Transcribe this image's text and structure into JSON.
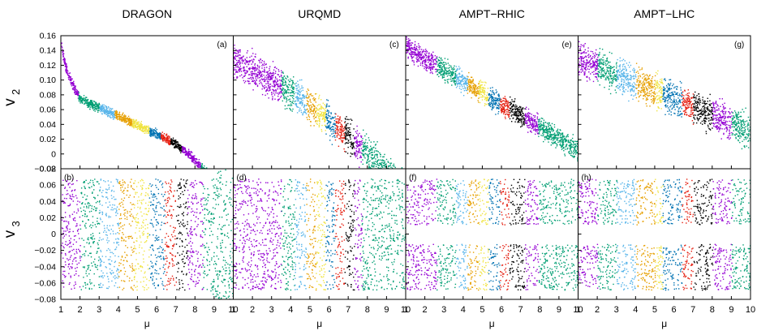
{
  "figure": {
    "column_titles": [
      "DRAGON",
      "URQMD",
      "AMPT−RHIC",
      "AMPT−LHC"
    ],
    "row_labels": [
      {
        "base": "v",
        "sub": "2"
      },
      {
        "base": "v",
        "sub": "3"
      }
    ],
    "x_axis_label": "μ",
    "x_tick_labels": [
      "1",
      "2",
      "3",
      "4",
      "5",
      "6",
      "7",
      "8",
      "9",
      "10"
    ],
    "top_tick_labels": [
      "0.16",
      "0.14",
      "0.12",
      "0.10",
      "0.08",
      "0.06",
      "0.04",
      "0.02",
      "0",
      "−0.02"
    ],
    "bottom_tick_labels": [
      "0.08",
      "0.06",
      "0.04",
      "0.02",
      "0",
      "−0.02",
      "−0.04",
      "−0.06",
      "−0.08"
    ]
  },
  "chart_data": {
    "type": "scatter",
    "xlim": [
      1,
      10
    ],
    "ylim_v2": [
      -0.02,
      0.16
    ],
    "ylim_v3": [
      -0.08,
      0.08
    ],
    "band_palette": [
      "#9400d3",
      "#009e73",
      "#56b4e9",
      "#e69f00",
      "#f0e442",
      "#0072b2",
      "#e51e10",
      "#000000"
    ],
    "panels": [
      {
        "label": "(a)",
        "column": "DRAGON",
        "observable": "v2",
        "bands": [
          [
            1.0,
            1.9
          ],
          [
            1.9,
            3.0
          ],
          [
            3.0,
            3.8
          ],
          [
            3.8,
            4.7
          ],
          [
            4.7,
            5.6
          ],
          [
            5.6,
            6.2
          ],
          [
            6.2,
            6.7
          ],
          [
            6.7,
            7.3
          ],
          [
            7.3,
            8.3
          ],
          [
            8.3,
            10.0
          ]
        ]
      },
      {
        "label": "(b)",
        "column": "DRAGON",
        "observable": "v3",
        "bands": [
          [
            1.0,
            2.0
          ],
          [
            2.0,
            3.0
          ],
          [
            3.0,
            4.0
          ],
          [
            4.0,
            4.8
          ],
          [
            4.8,
            5.6
          ],
          [
            5.6,
            6.4
          ],
          [
            6.4,
            7.0
          ],
          [
            7.0,
            7.6
          ],
          [
            7.6,
            8.4
          ],
          [
            8.4,
            10.0
          ]
        ]
      },
      {
        "label": "(c)",
        "column": "URQMD",
        "observable": "v2",
        "bands": [
          [
            1.0,
            3.5
          ],
          [
            3.5,
            4.2
          ],
          [
            4.2,
            4.8
          ],
          [
            4.8,
            5.3
          ],
          [
            5.3,
            5.8
          ],
          [
            5.8,
            6.3
          ],
          [
            6.3,
            6.8
          ],
          [
            6.8,
            7.3
          ],
          [
            7.3,
            7.7
          ],
          [
            7.7,
            10.0
          ]
        ]
      },
      {
        "label": "(d)",
        "column": "URQMD",
        "observable": "v3",
        "bands": [
          [
            1.0,
            3.5
          ],
          [
            3.5,
            4.2
          ],
          [
            4.2,
            4.8
          ],
          [
            4.8,
            5.3
          ],
          [
            5.3,
            5.8
          ],
          [
            5.8,
            6.3
          ],
          [
            6.3,
            6.8
          ],
          [
            6.8,
            7.3
          ],
          [
            7.3,
            7.7
          ],
          [
            7.7,
            10.0
          ]
        ]
      },
      {
        "label": "(e)",
        "column": "AMPT−RHIC",
        "observable": "v2",
        "bands": [
          [
            1.0,
            2.6
          ],
          [
            2.6,
            3.6
          ],
          [
            3.6,
            4.2
          ],
          [
            4.2,
            4.8
          ],
          [
            4.8,
            5.3
          ],
          [
            5.3,
            5.9
          ],
          [
            5.9,
            6.4
          ],
          [
            6.4,
            7.2
          ],
          [
            7.2,
            7.9
          ],
          [
            7.9,
            10.0
          ]
        ]
      },
      {
        "label": "(f)",
        "column": "AMPT−RHIC",
        "observable": "v3",
        "bands": [
          [
            1.0,
            2.6
          ],
          [
            2.6,
            3.6
          ],
          [
            3.6,
            4.2
          ],
          [
            4.2,
            4.8
          ],
          [
            4.8,
            5.3
          ],
          [
            5.3,
            5.9
          ],
          [
            5.9,
            6.4
          ],
          [
            6.4,
            7.2
          ],
          [
            7.2,
            7.9
          ],
          [
            7.9,
            10.0
          ]
        ]
      },
      {
        "label": "(g)",
        "column": "AMPT−LHC",
        "observable": "v2",
        "bands": [
          [
            1.0,
            2.0
          ],
          [
            2.0,
            3.0
          ],
          [
            3.0,
            4.0
          ],
          [
            4.0,
            5.0
          ],
          [
            5.0,
            5.4
          ],
          [
            5.4,
            6.4
          ],
          [
            6.4,
            7.0
          ],
          [
            7.0,
            8.0
          ],
          [
            8.0,
            9.0
          ],
          [
            9.0,
            10.0
          ]
        ]
      },
      {
        "label": "(h)",
        "column": "AMPT−LHC",
        "observable": "v3",
        "bands": [
          [
            1.0,
            2.0
          ],
          [
            2.0,
            3.0
          ],
          [
            3.0,
            4.0
          ],
          [
            4.0,
            5.0
          ],
          [
            5.0,
            5.4
          ],
          [
            5.4,
            6.4
          ],
          [
            6.4,
            7.0
          ],
          [
            7.0,
            8.0
          ],
          [
            8.0,
            9.0
          ],
          [
            9.0,
            10.0
          ]
        ]
      }
    ]
  }
}
